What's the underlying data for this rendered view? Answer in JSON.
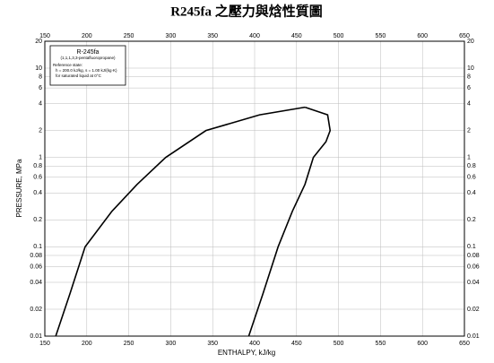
{
  "chart_data": {
    "type": "line",
    "title": "R245fa 之壓力與焓性質圖",
    "xlabel": "ENTHALPY, kJ/kg",
    "ylabel": "PRESSURE, MPa",
    "xlim": [
      150,
      650
    ],
    "ylim": [
      0.01,
      20
    ],
    "ylog": true,
    "grid": true,
    "xticks": [
      150,
      200,
      250,
      300,
      350,
      400,
      450,
      500,
      550,
      600,
      650
    ],
    "yticks": [
      0.01,
      0.02,
      0.04,
      0.06,
      0.08,
      0.1,
      0.2,
      0.4,
      0.6,
      0.8,
      1,
      2,
      4,
      6,
      8,
      10,
      20
    ],
    "legend_box": {
      "name": "R-245fa",
      "formula": "(1,1,1,3,3-pentafluoropropane)",
      "lines": [
        "Reference state:",
        "h = 200.0 kJ/kg,  s = 1.00 kJ/(kg·K)",
        "for saturated liquid at 0°C"
      ]
    },
    "series": [
      {
        "color": "#000000",
        "x": [
          163,
          180,
          198,
          230,
          260,
          294,
          342,
          406,
          460
        ],
        "values": [
          0.01,
          0.03,
          0.1,
          0.25,
          0.5,
          1,
          2,
          3,
          3.65
        ]
      },
      {
        "color": "#000000",
        "x": [
          393,
          410,
          428,
          445,
          460,
          470,
          485,
          490,
          487,
          460
        ],
        "values": [
          0.01,
          0.03,
          0.1,
          0.25,
          0.5,
          1,
          1.5,
          2,
          3,
          3.65
        ]
      }
    ]
  }
}
